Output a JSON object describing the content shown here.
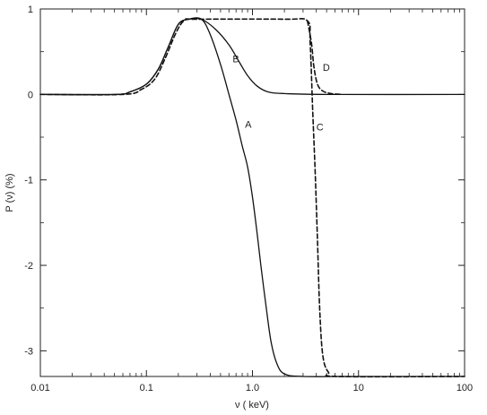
{
  "chart_data": {
    "type": "line",
    "title": "",
    "xlabel": "ν ( keV)",
    "ylabel": "P (ν) (%)",
    "x_scale": "log",
    "xlim": [
      0.01,
      100
    ],
    "ylim": [
      -3.3,
      1
    ],
    "x_ticks": [
      {
        "value": 0.01,
        "label": "0.01"
      },
      {
        "value": 0.1,
        "label": "0.1"
      },
      {
        "value": 1,
        "label": "1.0"
      },
      {
        "value": 10,
        "label": "10"
      },
      {
        "value": 100,
        "label": "100"
      }
    ],
    "y_ticks": [
      {
        "value": 1,
        "label": "1"
      },
      {
        "value": 0,
        "label": "0"
      },
      {
        "value": -1,
        "label": "-1"
      },
      {
        "value": -2,
        "label": "-2"
      },
      {
        "value": -3,
        "label": "-3"
      }
    ],
    "grid": false,
    "legend": "none",
    "series": [
      {
        "label": "A",
        "style": "solid",
        "label_at": [
          0.85,
          -0.35
        ],
        "points": [
          [
            0.01,
            0
          ],
          [
            0.05,
            0
          ],
          [
            0.07,
            0.03
          ],
          [
            0.1,
            0.12
          ],
          [
            0.13,
            0.3
          ],
          [
            0.16,
            0.55
          ],
          [
            0.2,
            0.82
          ],
          [
            0.25,
            0.88
          ],
          [
            0.33,
            0.88
          ],
          [
            0.4,
            0.7
          ],
          [
            0.5,
            0.35
          ],
          [
            0.6,
            0
          ],
          [
            0.7,
            -0.3
          ],
          [
            0.8,
            -0.6
          ],
          [
            0.9,
            -0.85
          ],
          [
            1.0,
            -1.2
          ],
          [
            1.1,
            -1.6
          ],
          [
            1.2,
            -2.0
          ],
          [
            1.35,
            -2.5
          ],
          [
            1.5,
            -2.9
          ],
          [
            1.7,
            -3.15
          ],
          [
            2.0,
            -3.27
          ],
          [
            3.0,
            -3.3
          ],
          [
            10,
            -3.3
          ],
          [
            100,
            -3.3
          ]
        ]
      },
      {
        "label": "B",
        "style": "solid",
        "label_at": [
          0.65,
          0.42
        ],
        "points": [
          [
            0.01,
            0
          ],
          [
            0.05,
            0
          ],
          [
            0.07,
            0.03
          ],
          [
            0.1,
            0.12
          ],
          [
            0.13,
            0.3
          ],
          [
            0.16,
            0.55
          ],
          [
            0.2,
            0.82
          ],
          [
            0.25,
            0.88
          ],
          [
            0.33,
            0.88
          ],
          [
            0.45,
            0.76
          ],
          [
            0.6,
            0.58
          ],
          [
            0.75,
            0.38
          ],
          [
            0.9,
            0.22
          ],
          [
            1.1,
            0.1
          ],
          [
            1.4,
            0.03
          ],
          [
            2,
            0.01
          ],
          [
            5,
            0
          ],
          [
            100,
            0
          ]
        ]
      },
      {
        "label": "C",
        "style": "dashed",
        "label_at": [
          4.0,
          -0.38
        ],
        "points": [
          [
            0.01,
            0
          ],
          [
            0.06,
            0
          ],
          [
            0.09,
            0.06
          ],
          [
            0.12,
            0.18
          ],
          [
            0.15,
            0.42
          ],
          [
            0.19,
            0.72
          ],
          [
            0.23,
            0.87
          ],
          [
            0.3,
            0.88
          ],
          [
            2.0,
            0.88
          ],
          [
            3.3,
            0.86
          ],
          [
            3.5,
            0.6
          ],
          [
            3.7,
            -0.2
          ],
          [
            3.9,
            -0.9
          ],
          [
            4.1,
            -1.7
          ],
          [
            4.3,
            -2.5
          ],
          [
            4.6,
            -3.05
          ],
          [
            5.2,
            -3.25
          ],
          [
            6.5,
            -3.3
          ],
          [
            100,
            -3.3
          ]
        ]
      },
      {
        "label": "D",
        "style": "dashed",
        "label_at": [
          4.6,
          0.32
        ],
        "points": [
          [
            3.3,
            0.86
          ],
          [
            3.6,
            0.6
          ],
          [
            3.8,
            0.32
          ],
          [
            4.1,
            0.12
          ],
          [
            4.6,
            0.04
          ],
          [
            5.5,
            0.01
          ],
          [
            7,
            0
          ]
        ]
      }
    ]
  }
}
